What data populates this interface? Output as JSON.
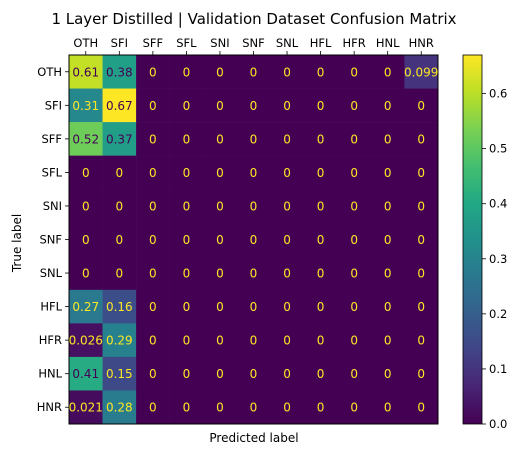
{
  "chart_data": {
    "type": "heatmap",
    "title": "1 Layer Distilled | Validation Dataset Confusion Matrix",
    "xlabel": "Predicted label",
    "ylabel": "True label",
    "x_categories": [
      "OTH",
      "SFI",
      "SFF",
      "SFL",
      "SNI",
      "SNF",
      "SNL",
      "HFL",
      "HFR",
      "HNL",
      "HNR"
    ],
    "y_categories": [
      "OTH",
      "SFI",
      "SFF",
      "SFL",
      "SNI",
      "SNF",
      "SNL",
      "HFL",
      "HFR",
      "HNL",
      "HNR"
    ],
    "values": [
      [
        0.61,
        0.38,
        0,
        0,
        0,
        0,
        0,
        0,
        0,
        0,
        0.099
      ],
      [
        0.31,
        0.67,
        0,
        0,
        0,
        0,
        0,
        0,
        0,
        0,
        0
      ],
      [
        0.52,
        0.37,
        0,
        0,
        0,
        0,
        0,
        0,
        0,
        0,
        0
      ],
      [
        0,
        0,
        0,
        0,
        0,
        0,
        0,
        0,
        0,
        0,
        0
      ],
      [
        0,
        0,
        0,
        0,
        0,
        0,
        0,
        0,
        0,
        0,
        0
      ],
      [
        0,
        0,
        0,
        0,
        0,
        0,
        0,
        0,
        0,
        0,
        0
      ],
      [
        0,
        0,
        0,
        0,
        0,
        0,
        0,
        0,
        0,
        0,
        0
      ],
      [
        0.27,
        0.16,
        0,
        0,
        0,
        0,
        0,
        0,
        0,
        0,
        0
      ],
      [
        0.026,
        0.29,
        0,
        0,
        0,
        0,
        0,
        0,
        0,
        0,
        0
      ],
      [
        0.41,
        0.15,
        0,
        0,
        0,
        0,
        0,
        0,
        0,
        0,
        0
      ],
      [
        0.021,
        0.28,
        0,
        0,
        0,
        0,
        0,
        0,
        0,
        0,
        0
      ]
    ],
    "cell_labels": [
      [
        "0.61",
        "0.38",
        "0",
        "0",
        "0",
        "0",
        "0",
        "0",
        "0",
        "0",
        "0.099"
      ],
      [
        "0.31",
        "0.67",
        "0",
        "0",
        "0",
        "0",
        "0",
        "0",
        "0",
        "0",
        "0"
      ],
      [
        "0.52",
        "0.37",
        "0",
        "0",
        "0",
        "0",
        "0",
        "0",
        "0",
        "0",
        "0"
      ],
      [
        "0",
        "0",
        "0",
        "0",
        "0",
        "0",
        "0",
        "0",
        "0",
        "0",
        "0"
      ],
      [
        "0",
        "0",
        "0",
        "0",
        "0",
        "0",
        "0",
        "0",
        "0",
        "0",
        "0"
      ],
      [
        "0",
        "0",
        "0",
        "0",
        "0",
        "0",
        "0",
        "0",
        "0",
        "0",
        "0"
      ],
      [
        "0",
        "0",
        "0",
        "0",
        "0",
        "0",
        "0",
        "0",
        "0",
        "0",
        "0"
      ],
      [
        "0.27",
        "0.16",
        "0",
        "0",
        "0",
        "0",
        "0",
        "0",
        "0",
        "0",
        "0"
      ],
      [
        "0.026",
        "0.29",
        "0",
        "0",
        "0",
        "0",
        "0",
        "0",
        "0",
        "0",
        "0"
      ],
      [
        "0.41",
        "0.15",
        "0",
        "0",
        "0",
        "0",
        "0",
        "0",
        "0",
        "0",
        "0"
      ],
      [
        "0.021",
        "0.28",
        "0",
        "0",
        "0",
        "0",
        "0",
        "0",
        "0",
        "0",
        "0"
      ]
    ],
    "colormap": "viridis",
    "colorbar": {
      "range": [
        0.0,
        0.67
      ],
      "ticks": [
        0.0,
        0.1,
        0.2,
        0.3,
        0.4,
        0.5,
        0.6
      ],
      "tick_labels": [
        "0.0",
        "0.1",
        "0.2",
        "0.3",
        "0.4",
        "0.5",
        "0.6"
      ]
    },
    "x_ticks_position": "top",
    "grid": false,
    "colors": {
      "text_light": "#fde725",
      "text_dark": "#440154"
    }
  }
}
